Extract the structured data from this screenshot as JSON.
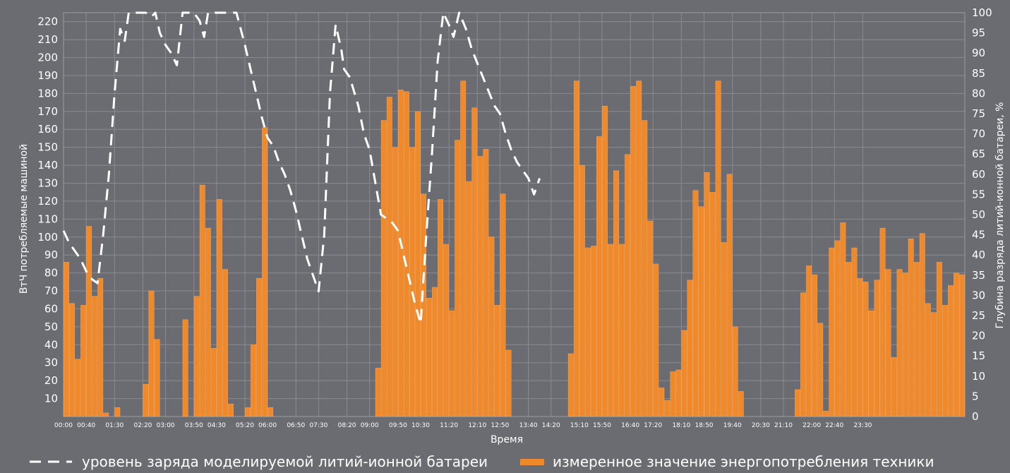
{
  "chart_data": {
    "type": "bar",
    "xlabel": "Время",
    "ylabel": "ВтЧ потребляемые машиной",
    "y2label": "Глубина разряда литий-ионной батареи, %",
    "ylim": [
      0,
      225
    ],
    "y2lim": [
      0,
      100
    ],
    "y_ticks": [
      10,
      20,
      30,
      40,
      50,
      60,
      70,
      80,
      90,
      100,
      110,
      120,
      130,
      140,
      150,
      160,
      170,
      180,
      190,
      200,
      210,
      220
    ],
    "y2_ticks": [
      0,
      5,
      10,
      15,
      20,
      25,
      30,
      35,
      40,
      45,
      50,
      55,
      60,
      65,
      70,
      75,
      80,
      85,
      90,
      95,
      100
    ],
    "x_ticks": [
      "00:00",
      "00:40",
      "01:30",
      "02:20",
      "03:00",
      "03:50",
      "04:30",
      "05:20",
      "06:00",
      "06:50",
      "07:30",
      "08:20",
      "09:00",
      "09:50",
      "10:30",
      "11:20",
      "12:10",
      "12:50",
      "13:40",
      "14:20",
      "15:10",
      "15:50",
      "16:40",
      "17:20",
      "18:10",
      "18:50",
      "19:40",
      "20:30",
      "21:10",
      "22:00",
      "22:40",
      "23:30"
    ],
    "grid": true,
    "colors": {
      "bars": "#f0892a",
      "line": "#ffffff",
      "grid": "#8a8b90",
      "background": "#6b6c72"
    },
    "series": [
      {
        "name": "измеренное значение энергопотребления техники",
        "type": "bar",
        "axis": "left",
        "start": "00:00",
        "step_minutes": 10,
        "values": [
          86,
          63,
          32,
          62,
          106,
          67,
          77,
          2,
          0,
          5,
          0,
          0,
          0,
          0,
          18,
          70,
          43,
          0,
          0,
          0,
          0,
          54,
          0,
          67,
          129,
          105,
          38,
          121,
          82,
          7,
          0,
          0,
          5,
          40,
          77,
          161,
          5,
          0,
          0,
          0,
          0,
          0,
          0,
          0,
          0,
          0,
          0,
          0,
          0,
          0,
          0,
          0,
          0,
          0,
          0,
          27,
          165,
          178,
          150,
          182,
          181,
          150,
          170,
          124,
          66,
          72,
          121,
          96,
          59,
          154,
          187,
          131,
          172,
          145,
          149,
          100,
          62,
          124,
          37,
          0,
          0,
          0,
          0,
          0,
          0,
          0,
          0,
          0,
          0,
          35,
          187,
          140,
          94,
          95,
          156,
          173,
          96,
          137,
          96,
          146,
          184,
          187,
          165,
          109,
          85,
          16,
          9,
          25,
          26,
          48,
          76,
          126,
          117,
          136,
          125,
          187,
          97,
          135,
          50,
          14,
          0,
          0,
          0,
          0,
          0,
          0,
          0,
          0,
          0,
          15,
          69,
          84,
          79,
          52,
          3,
          94,
          98,
          108,
          86,
          94,
          77,
          75,
          59,
          76,
          105,
          82,
          33,
          82,
          80,
          99,
          86,
          102,
          63,
          58,
          86,
          62,
          73,
          80,
          79
        ]
      },
      {
        "name": "уровень заряда моделируемой литий-ионной батареи",
        "type": "line",
        "style": "dashed",
        "axis": "right",
        "points": [
          [
            0,
            46
          ],
          [
            10,
            43
          ],
          [
            20,
            41
          ],
          [
            30,
            39
          ],
          [
            40,
            36
          ],
          [
            50,
            34
          ],
          [
            60,
            33
          ],
          [
            70,
            45
          ],
          [
            80,
            60
          ],
          [
            90,
            80
          ],
          [
            100,
            96
          ],
          [
            108,
            93
          ],
          [
            115,
            100
          ],
          [
            125,
            100
          ],
          [
            145,
            100
          ],
          [
            155,
            99
          ],
          [
            162,
            100
          ],
          [
            170,
            95
          ],
          [
            180,
            92
          ],
          [
            190,
            90
          ],
          [
            200,
            87
          ],
          [
            210,
            100
          ],
          [
            230,
            100
          ],
          [
            240,
            98
          ],
          [
            248,
            94
          ],
          [
            255,
            100
          ],
          [
            290,
            100
          ],
          [
            305,
            100
          ],
          [
            320,
            92
          ],
          [
            330,
            86
          ],
          [
            340,
            80
          ],
          [
            350,
            74
          ],
          [
            360,
            69
          ],
          [
            370,
            67
          ],
          [
            380,
            63
          ],
          [
            390,
            60
          ],
          [
            400,
            56
          ],
          [
            410,
            51
          ],
          [
            420,
            45
          ],
          [
            430,
            39
          ],
          [
            440,
            35
          ],
          [
            450,
            31
          ],
          [
            460,
            45
          ],
          [
            470,
            80
          ],
          [
            480,
            97
          ],
          [
            490,
            91
          ],
          [
            495,
            86
          ],
          [
            505,
            84
          ],
          [
            520,
            77
          ],
          [
            530,
            70
          ],
          [
            540,
            66
          ],
          [
            550,
            58
          ],
          [
            560,
            50
          ],
          [
            570,
            49
          ],
          [
            580,
            48
          ],
          [
            590,
            46
          ],
          [
            600,
            40
          ],
          [
            610,
            34
          ],
          [
            620,
            28
          ],
          [
            630,
            23
          ],
          [
            640,
            45
          ],
          [
            650,
            65
          ],
          [
            660,
            88
          ],
          [
            670,
            100
          ],
          [
            680,
            97
          ],
          [
            688,
            94
          ],
          [
            698,
            100
          ],
          [
            710,
            96
          ],
          [
            720,
            91
          ],
          [
            740,
            84
          ],
          [
            760,
            77
          ],
          [
            770,
            75
          ],
          [
            780,
            70
          ],
          [
            790,
            66
          ],
          [
            800,
            63
          ],
          [
            810,
            61
          ],
          [
            820,
            59
          ],
          [
            830,
            55
          ],
          [
            840,
            59
          ]
        ]
      }
    ]
  }
}
